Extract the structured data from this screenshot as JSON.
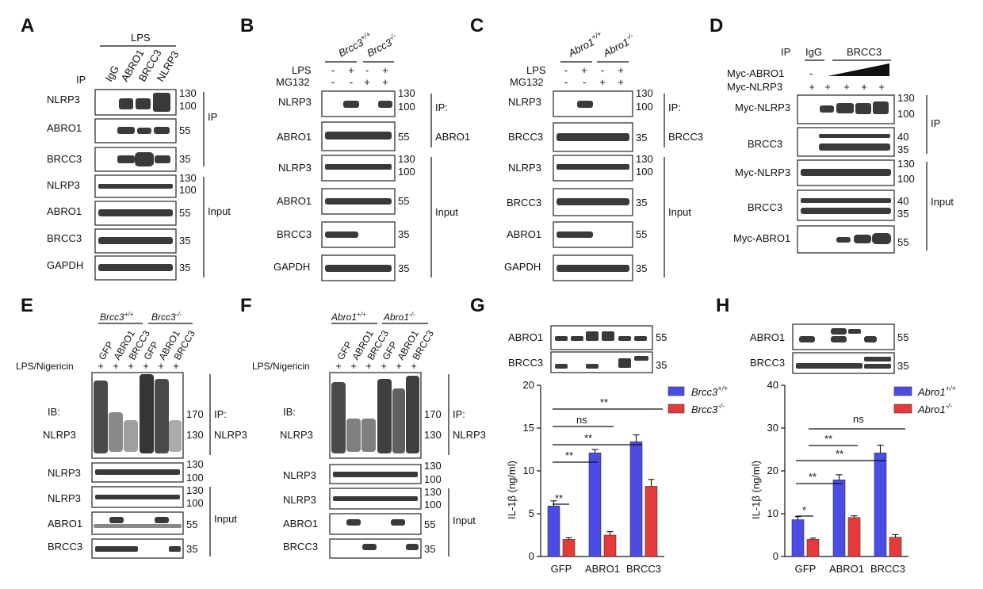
{
  "panels": {
    "A": {
      "label": "A",
      "treatment": "LPS",
      "ip_header": "IP",
      "lanes": [
        "IgG",
        "ABRO1",
        "BRCC3",
        "NLRP3"
      ],
      "blots": [
        "NLRP3",
        "ABRO1",
        "BRCC3",
        "NLRP3",
        "ABRO1",
        "BRCC3",
        "GAPDH"
      ],
      "markers": [
        "130",
        "100",
        "55",
        "35",
        "130",
        "100",
        "55",
        "35",
        "35"
      ],
      "groups": [
        "IP",
        "Input"
      ]
    },
    "B": {
      "label": "B",
      "genotypes": {
        "g1": "Brcc3",
        "g1sup": "+/+",
        "g2": "Brcc3",
        "g2sup": "-/-"
      },
      "rows": [
        {
          "name": "LPS",
          "signs": [
            "-",
            "+",
            "-",
            "+"
          ]
        },
        {
          "name": "MG132",
          "signs": [
            "-",
            "-",
            "+",
            "+"
          ]
        }
      ],
      "blots": [
        "NLRP3",
        "ABRO1",
        "NLRP3",
        "ABRO1",
        "BRCC3",
        "GAPDH"
      ],
      "markers": [
        "130",
        "100",
        "55",
        "130",
        "100",
        "55",
        "35",
        "35"
      ],
      "groups": [
        "IP:",
        "ABRO1",
        "Input"
      ]
    },
    "C": {
      "label": "C",
      "genotypes": {
        "g1": "Abro1",
        "g1sup": "+/+",
        "g2": "Abro1",
        "g2sup": "-/-"
      },
      "rows": [
        {
          "name": "LPS",
          "signs": [
            "-",
            "+",
            "-",
            "+"
          ]
        },
        {
          "name": "MG132",
          "signs": [
            "-",
            "-",
            "+",
            "+"
          ]
        }
      ],
      "blots": [
        "NLRP3",
        "BRCC3",
        "NLRP3",
        "BRCC3",
        "ABRO1",
        "GAPDH"
      ],
      "markers": [
        "130",
        "100",
        "35",
        "130",
        "100",
        "35",
        "55",
        "35"
      ],
      "groups": [
        "IP:",
        "BRCC3",
        "Input"
      ]
    },
    "D": {
      "label": "D",
      "ip_header": "IP",
      "ip_cols": [
        "IgG",
        "BRCC3"
      ],
      "rows": [
        {
          "name": "Myc-ABRO1",
          "signs": [
            "-"
          ]
        },
        {
          "name": "Myc-NLRP3",
          "signs": [
            "+",
            "+",
            "+",
            "+",
            "+"
          ]
        }
      ],
      "blots": [
        "Myc-NLRP3",
        "BRCC3",
        "Myc-NLRP3",
        "BRCC3",
        "Myc-ABRO1"
      ],
      "markers": [
        "130",
        "100",
        "40",
        "35",
        "130",
        "100",
        "40",
        "35",
        "55"
      ],
      "groups": [
        "IP",
        "Input"
      ]
    },
    "E": {
      "label": "E",
      "genotypes": {
        "g1": "Brcc3",
        "g1sup": "+/+",
        "g2": "Brcc3",
        "g2sup": "-/-"
      },
      "lanes": [
        "GFP",
        "ABRO1",
        "BRCC3",
        "GFP",
        "ABRO1",
        "BRCC3"
      ],
      "treatment": "LPS/Nigericin",
      "plus": [
        "+",
        "+",
        "+",
        "+",
        "+",
        "+"
      ],
      "ib": "IB:",
      "blots": [
        "NLRP3",
        "NLRP3",
        "NLRP3",
        "ABRO1",
        "BRCC3"
      ],
      "markers": [
        "170",
        "130",
        "130",
        "100",
        "130",
        "100",
        "55",
        "35"
      ],
      "groups": [
        "IP:",
        "NLRP3",
        "Input"
      ]
    },
    "F": {
      "label": "F",
      "genotypes": {
        "g1": "Abro1",
        "g1sup": "+/+",
        "g2": "Abro1",
        "g2sup": "-/-"
      },
      "lanes": [
        "GFP",
        "ABRO1",
        "BRCC3",
        "GFP",
        "ABRO1",
        "BRCC3"
      ],
      "treatment": "LPS/Nigericin",
      "plus": [
        "+",
        "+",
        "+",
        "+",
        "+",
        "+"
      ],
      "ib": "IB:",
      "blots": [
        "NLRP3",
        "NLRP3",
        "NLRP3",
        "ABRO1",
        "BRCC3"
      ],
      "markers": [
        "170",
        "130",
        "130",
        "100",
        "130",
        "100",
        "55",
        "35"
      ],
      "groups": [
        "IP:",
        "NLRP3",
        "Input"
      ]
    },
    "G": {
      "label": "G",
      "blots": [
        "ABRO1",
        "BRCC3"
      ],
      "markers": [
        "55",
        "35"
      ],
      "ylabel": "IL-1β (ng/ml)",
      "sig": [
        "**",
        "**",
        "**",
        "ns",
        "**"
      ],
      "legend": [
        {
          "name": "Brcc3",
          "sup": "+/+"
        },
        {
          "name": "Brcc3",
          "sup": "-/-"
        }
      ]
    },
    "H": {
      "label": "H",
      "blots": [
        "ABRO1",
        "BRCC3"
      ],
      "markers": [
        "55",
        "35"
      ],
      "ylabel": "IL-1β (ng/ml)",
      "sig": [
        "*",
        "**",
        "**",
        "**",
        "ns"
      ],
      "legend": [
        {
          "name": "Abro1",
          "sup": "+/+"
        },
        {
          "name": "Abro1",
          "sup": "-/-"
        }
      ]
    }
  },
  "chart_data": [
    {
      "type": "bar",
      "categories": [
        "GFP",
        "ABRO1",
        "BRCC3"
      ],
      "series": [
        {
          "name": "Brcc3+/+",
          "values": [
            5.9,
            12.1,
            13.4
          ],
          "errors": [
            0.6,
            0.4,
            0.8
          ],
          "color": "#4b4ce6"
        },
        {
          "name": "Brcc3-/-",
          "values": [
            2.0,
            2.5,
            8.2
          ],
          "errors": [
            0.2,
            0.4,
            0.8
          ],
          "color": "#e63a3a"
        }
      ],
      "ylabel": "IL-1β (ng/ml)",
      "ylim": [
        0,
        20
      ],
      "yticks": [
        0,
        5,
        10,
        15,
        20
      ],
      "legend": "top-right"
    },
    {
      "type": "bar",
      "categories": [
        "GFP",
        "ABRO1",
        "BRCC3"
      ],
      "series": [
        {
          "name": "Abro1+/+",
          "values": [
            8.6,
            17.9,
            24.2
          ],
          "errors": [
            0.7,
            1.2,
            1.8
          ],
          "color": "#4b4ce6"
        },
        {
          "name": "Abro1-/-",
          "values": [
            4.0,
            9.1,
            4.5
          ],
          "errors": [
            0.3,
            0.4,
            0.6
          ],
          "color": "#e63a3a"
        }
      ],
      "ylabel": "IL-1β (ng/ml)",
      "ylim": [
        0,
        40
      ],
      "yticks": [
        0,
        10,
        20,
        30,
        40
      ],
      "legend": "top-right"
    }
  ]
}
